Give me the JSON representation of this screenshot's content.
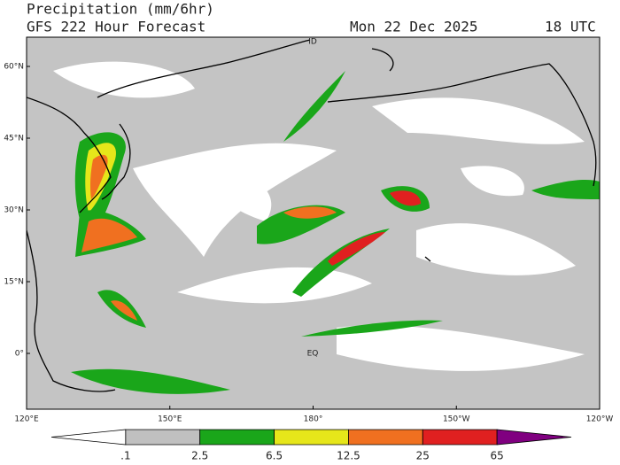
{
  "header": {
    "title": "Precipitation (mm/6hr)",
    "model": "GFS 222 Hour Forecast",
    "date": "Mon 22 Dec 2025",
    "time": "18 UTC"
  },
  "map": {
    "lat_labels": [
      "60°N",
      "45°N",
      "30°N",
      "15°N",
      "0°"
    ],
    "lon_labels": [
      "120°E",
      "150°E",
      "180°",
      "150°W",
      "120°W"
    ],
    "annotations": [
      "ID",
      "EQ"
    ]
  },
  "colorbar": {
    "labels": [
      ".1",
      "2.5",
      "6.5",
      "12.5",
      "25",
      "65"
    ],
    "colors": [
      "#ffffff",
      "#c0c0c0",
      "#1aa61a",
      "#e6e61a",
      "#f07020",
      "#e02020",
      "#800080"
    ]
  }
}
